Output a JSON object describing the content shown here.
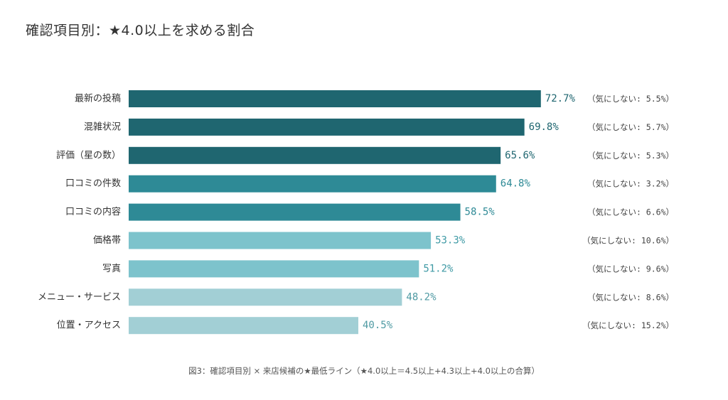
{
  "chart_data": {
    "type": "bar",
    "orientation": "horizontal",
    "title": "確認項目別：★4.0以上を求める割合",
    "categories": [
      "最新の投稿",
      "混雑状況",
      "評価（星の数）",
      "口コミの件数",
      "口コミの内容",
      "価格帯",
      "写真",
      "メニュー・サービス",
      "位置・アクセス"
    ],
    "values": [
      72.7,
      69.8,
      65.6,
      64.8,
      58.5,
      53.3,
      51.2,
      48.2,
      40.5
    ],
    "value_labels": [
      "72.7%",
      "69.8%",
      "65.6%",
      "64.8%",
      "58.5%",
      "53.3%",
      "51.2%",
      "48.2%",
      "40.5%"
    ],
    "notes": [
      "（気にしない: 5.5%）",
      "（気にしない: 5.7%）",
      "（気にしない: 5.3%）",
      "（気にしない: 3.2%）",
      "（気にしない: 6.6%）",
      "（気にしない: 10.6%）",
      "（気にしない: 9.6%）",
      "（気にしない: 8.6%）",
      "（気にしない: 15.2%）"
    ],
    "colors": [
      "#1f6670",
      "#1f6670",
      "#1f6670",
      "#2e8a96",
      "#2e8a96",
      "#7dc3cc",
      "#7dc3cc",
      "#a2cfd5",
      "#a2cfd5"
    ],
    "value_label_colors": [
      "#1f6670",
      "#1f6670",
      "#1f6670",
      "#2e8a96",
      "#2e8a96",
      "#3f9aa5",
      "#3f9aa5",
      "#4f9aa3",
      "#4f9aa3"
    ],
    "xlim": [
      0,
      100
    ],
    "grid": false,
    "caption": "図3：確認項目別 × 来店候補の★最低ライン（★4.0以上＝4.5以上+4.3以上+4.0以上の合算）"
  }
}
